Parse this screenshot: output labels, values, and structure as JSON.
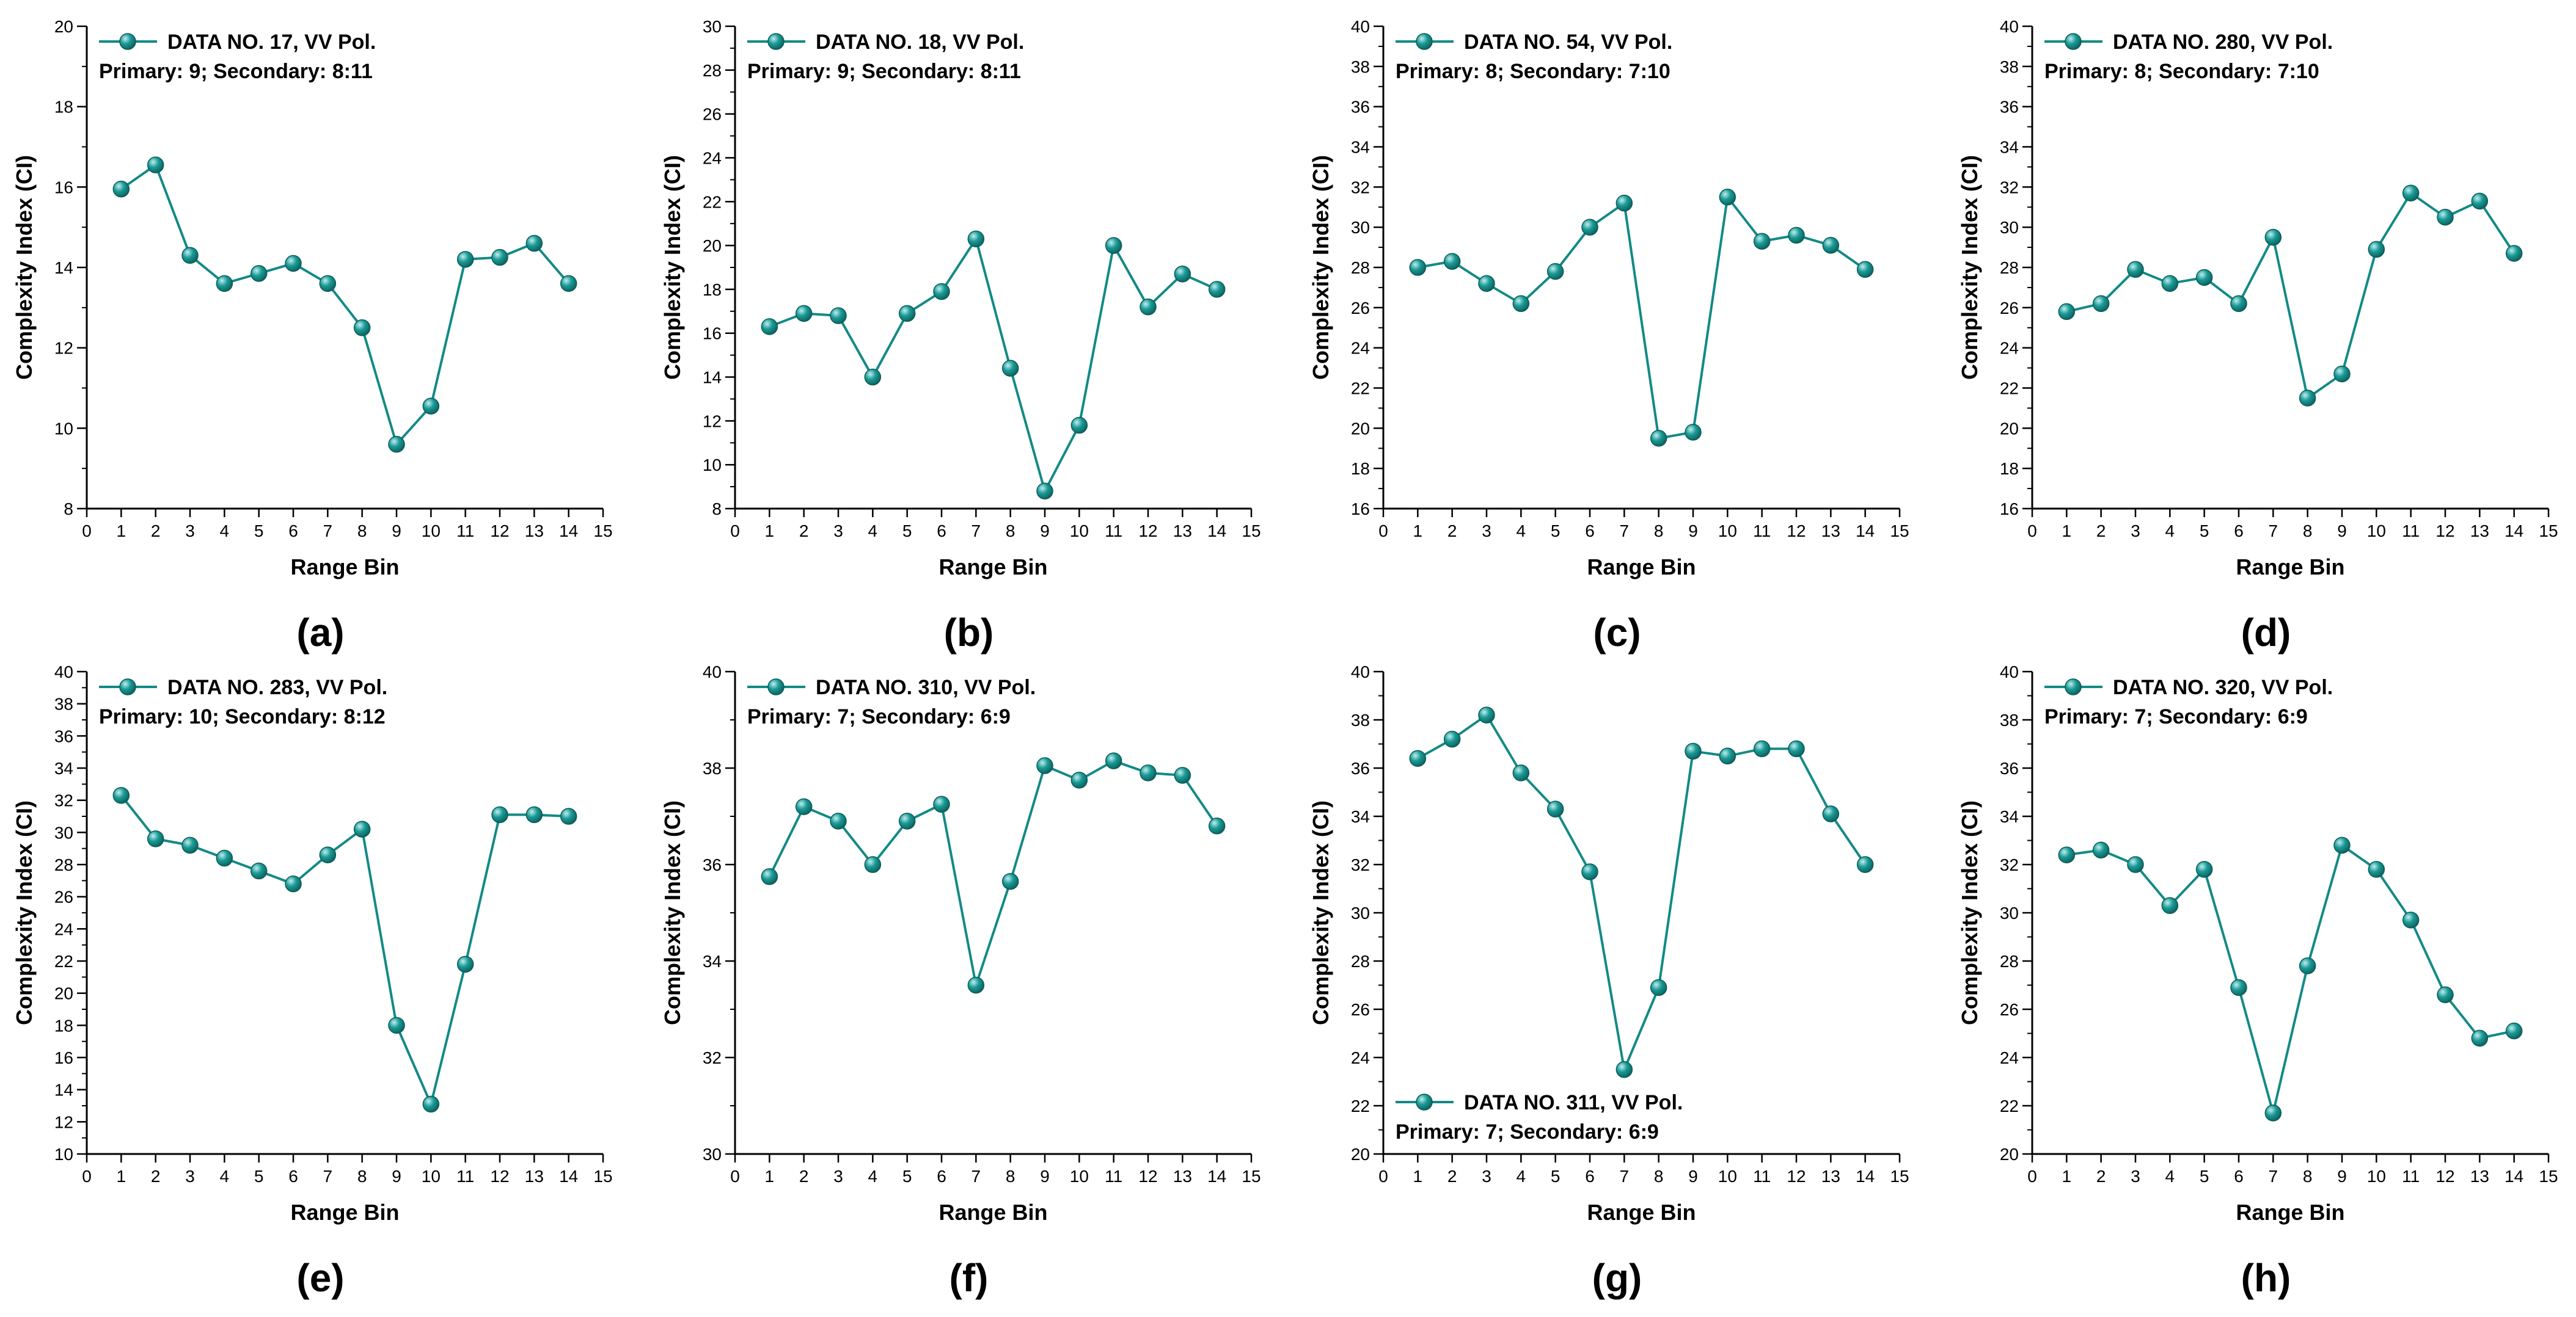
{
  "style": {
    "series_color": "#138a86",
    "marker_fill": "#1a9a96",
    "marker_edge": "#0b5c59",
    "marker_highlight": "#bfeeee",
    "axis_color": "#000000"
  },
  "chart_data": [
    {
      "type": "line",
      "label": "(a)",
      "legend_position": "top-left",
      "legend": "DATA NO. 17, VV Pol.",
      "note": "Primary: 9; Secondary: 8:11",
      "xlabel": "Range Bin",
      "ylabel": "Complexity Index (CI)",
      "xlim": [
        0,
        15
      ],
      "ylim": [
        8,
        20
      ],
      "ymajor": 2,
      "yminor": 1,
      "x": [
        1,
        2,
        3,
        4,
        5,
        6,
        7,
        8,
        9,
        10,
        11,
        12,
        13,
        14
      ],
      "y": [
        15.95,
        16.55,
        14.3,
        13.6,
        13.85,
        14.1,
        13.6,
        12.5,
        9.6,
        10.55,
        14.2,
        14.25,
        14.6,
        13.6
      ]
    },
    {
      "type": "line",
      "label": "(b)",
      "legend_position": "top-left",
      "legend": "DATA NO. 18, VV Pol.",
      "note": "Primary: 9; Secondary: 8:11",
      "xlabel": "Range Bin",
      "ylabel": "Complexity Index (CI)",
      "xlim": [
        0,
        15
      ],
      "ylim": [
        8,
        30
      ],
      "ymajor": 2,
      "yminor": 1,
      "x": [
        1,
        2,
        3,
        4,
        5,
        6,
        7,
        8,
        9,
        10,
        11,
        12,
        13,
        14
      ],
      "y": [
        16.3,
        16.9,
        16.8,
        14.0,
        16.9,
        17.9,
        20.3,
        14.4,
        8.8,
        11.8,
        20.0,
        17.2,
        18.7,
        18.0
      ]
    },
    {
      "type": "line",
      "label": "(c)",
      "legend_position": "top-left",
      "legend": "DATA NO. 54, VV Pol.",
      "note": "Primary: 8; Secondary: 7:10",
      "xlabel": "Range Bin",
      "ylabel": "Complexity Index (CI)",
      "xlim": [
        0,
        15
      ],
      "ylim": [
        16,
        40
      ],
      "ymajor": 2,
      "yminor": 1,
      "x": [
        1,
        2,
        3,
        4,
        5,
        6,
        7,
        8,
        9,
        10,
        11,
        12,
        13,
        14
      ],
      "y": [
        28.0,
        28.3,
        27.2,
        26.2,
        27.8,
        30.0,
        31.2,
        19.5,
        19.8,
        31.5,
        29.3,
        29.6,
        29.1,
        27.9
      ]
    },
    {
      "type": "line",
      "label": "(d)",
      "legend_position": "top-left",
      "legend": "DATA NO. 280, VV Pol.",
      "note": "Primary: 8; Secondary: 7:10",
      "xlabel": "Range Bin",
      "ylabel": "Complexity Index (CI)",
      "xlim": [
        0,
        15
      ],
      "ylim": [
        16,
        40
      ],
      "ymajor": 2,
      "yminor": 1,
      "x": [
        1,
        2,
        3,
        4,
        5,
        6,
        7,
        8,
        9,
        10,
        11,
        12,
        13,
        14
      ],
      "y": [
        25.8,
        26.2,
        27.9,
        27.2,
        27.5,
        26.2,
        29.5,
        21.5,
        22.7,
        28.9,
        31.7,
        30.5,
        31.3,
        28.7
      ]
    },
    {
      "type": "line",
      "label": "(e)",
      "legend_position": "top-left",
      "legend": "DATA NO. 283, VV Pol.",
      "note": "Primary: 10; Secondary: 8:12",
      "xlabel": "Range Bin",
      "ylabel": "Complexity Index (CI)",
      "xlim": [
        0,
        15
      ],
      "ylim": [
        10,
        40
      ],
      "ymajor": 2,
      "yminor": 1,
      "x": [
        1,
        2,
        3,
        4,
        5,
        6,
        7,
        8,
        9,
        10,
        11,
        12,
        13,
        14
      ],
      "y": [
        32.3,
        29.6,
        29.2,
        28.4,
        27.6,
        26.8,
        28.6,
        30.2,
        18.0,
        13.1,
        21.8,
        31.1,
        31.1,
        31.0
      ]
    },
    {
      "type": "line",
      "label": "(f)",
      "legend_position": "top-left",
      "legend": "DATA NO. 310, VV Pol.",
      "note": "Primary: 7; Secondary: 6:9",
      "xlabel": "Range Bin",
      "ylabel": "Complexity Index (CI)",
      "xlim": [
        0,
        15
      ],
      "ylim": [
        30,
        40
      ],
      "ymajor": 2,
      "yminor": 1,
      "x": [
        1,
        2,
        3,
        4,
        5,
        6,
        7,
        8,
        9,
        10,
        11,
        12,
        13,
        14
      ],
      "y": [
        35.75,
        37.2,
        36.9,
        36.0,
        36.9,
        37.25,
        33.5,
        35.65,
        38.05,
        37.75,
        38.15,
        37.9,
        37.85,
        36.8
      ]
    },
    {
      "type": "line",
      "label": "(g)",
      "legend_position": "bottom-left",
      "legend": "DATA NO. 311, VV Pol.",
      "note": "Primary: 7; Secondary: 6:9",
      "xlabel": "Range Bin",
      "ylabel": "Complexity Index (CI)",
      "xlim": [
        0,
        15
      ],
      "ylim": [
        20,
        40
      ],
      "ymajor": 2,
      "yminor": 1,
      "x": [
        1,
        2,
        3,
        4,
        5,
        6,
        7,
        8,
        9,
        10,
        11,
        12,
        13,
        14
      ],
      "y": [
        36.4,
        37.2,
        38.2,
        35.8,
        34.3,
        31.7,
        23.5,
        26.9,
        36.7,
        36.5,
        36.8,
        36.8,
        34.1,
        32.0
      ]
    },
    {
      "type": "line",
      "label": "(h)",
      "legend_position": "top-left",
      "legend": "DATA NO. 320, VV Pol.",
      "note": "Primary: 7; Secondary: 6:9",
      "xlabel": "Range Bin",
      "ylabel": "Complexity Index (CI)",
      "xlim": [
        0,
        15
      ],
      "ylim": [
        20,
        40
      ],
      "ymajor": 2,
      "yminor": 1,
      "x": [
        1,
        2,
        3,
        4,
        5,
        6,
        7,
        8,
        9,
        10,
        11,
        12,
        13,
        14
      ],
      "y": [
        32.4,
        32.6,
        32.0,
        30.3,
        31.8,
        26.9,
        21.7,
        27.8,
        32.8,
        31.8,
        29.7,
        26.6,
        24.8,
        25.1
      ]
    }
  ]
}
